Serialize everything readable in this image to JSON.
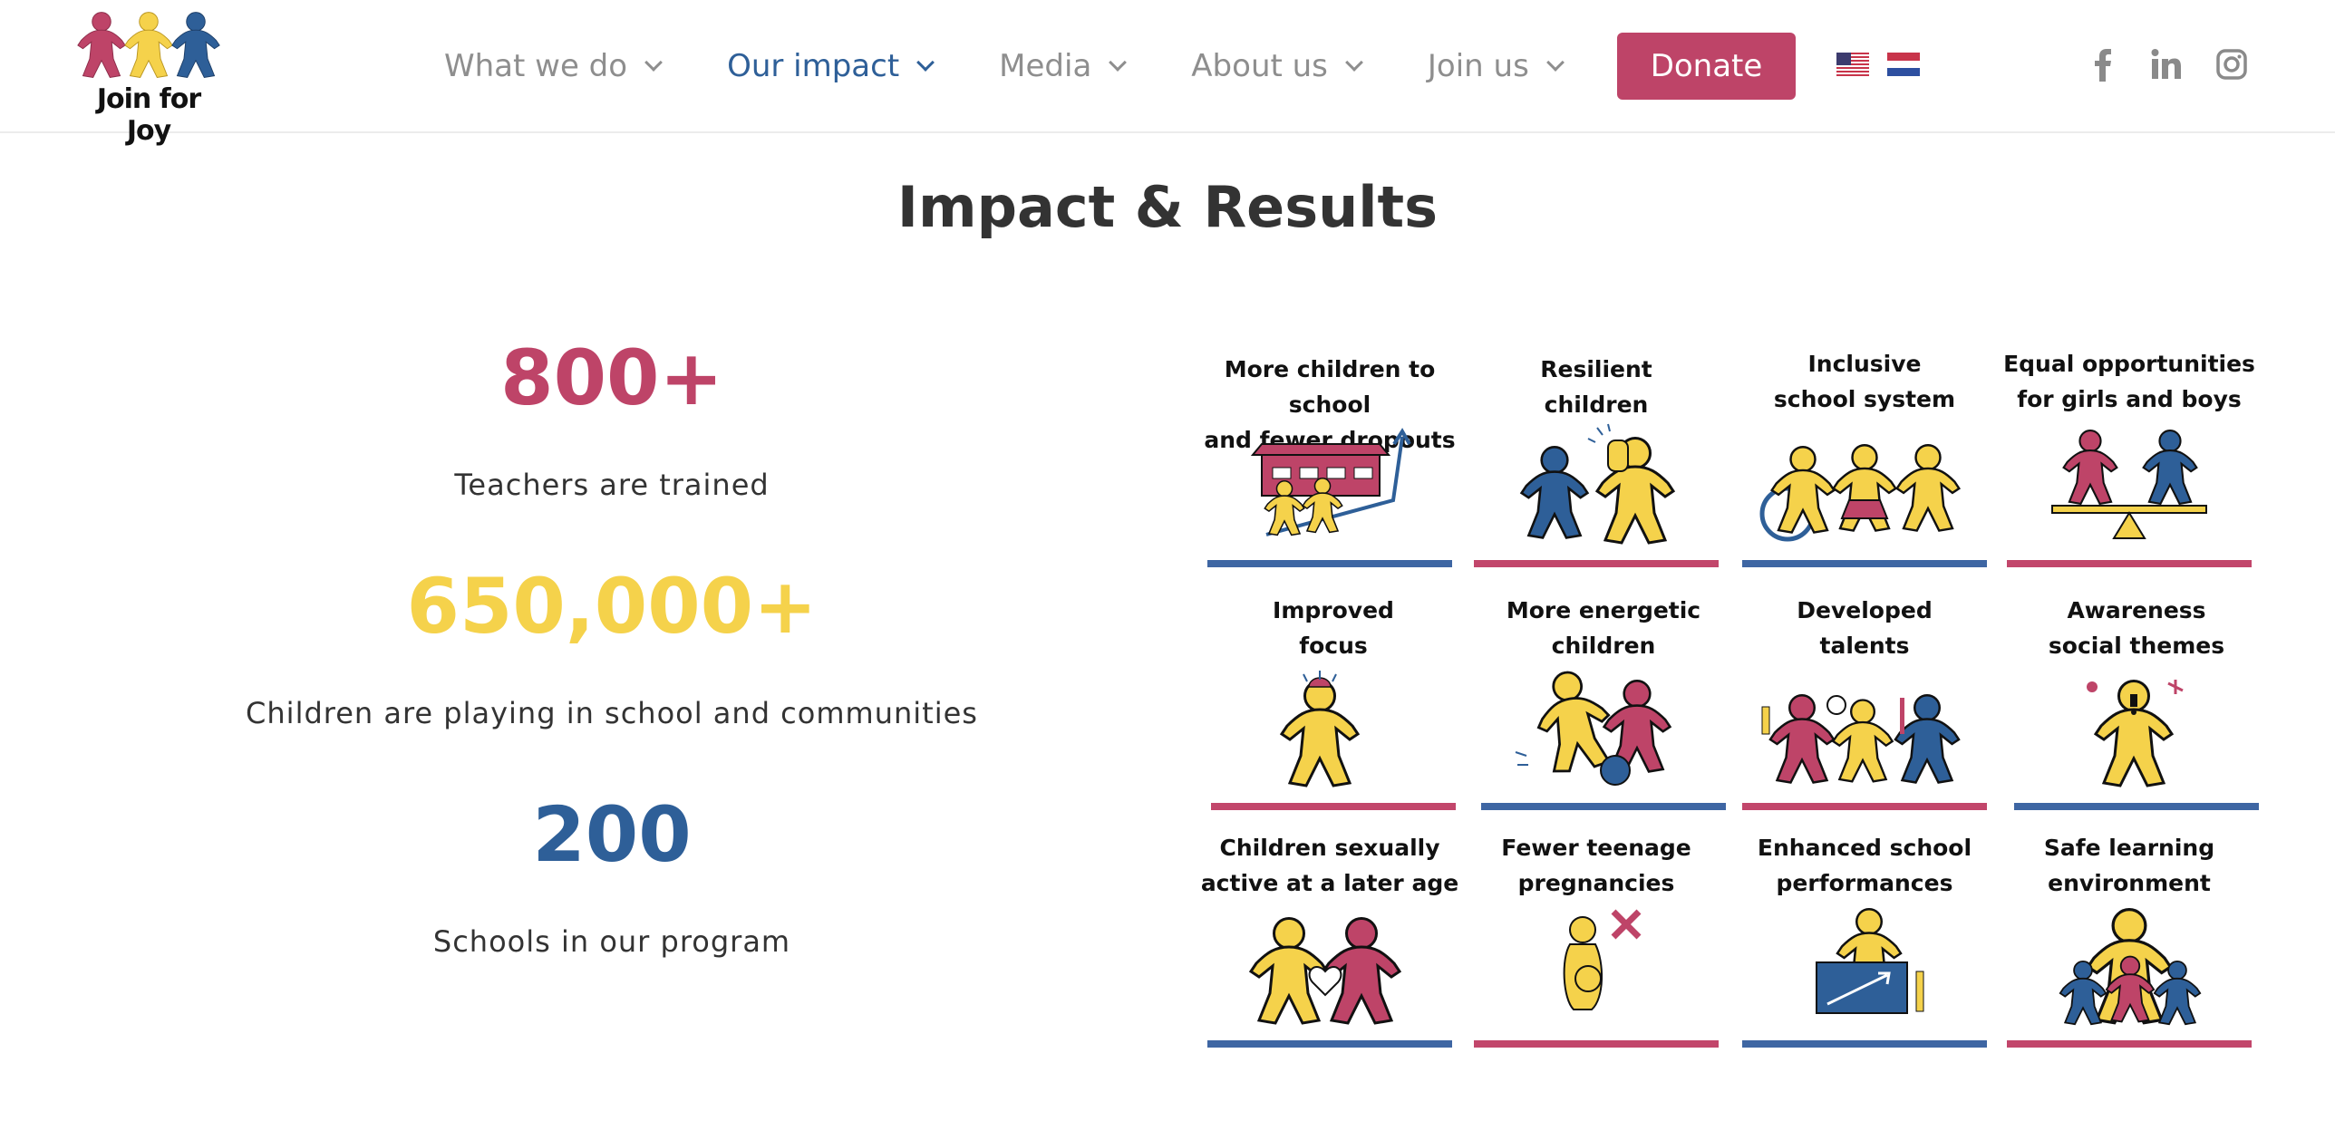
{
  "header": {
    "logo_text": "Join for Joy",
    "nav": [
      {
        "label": "What we do",
        "active": false
      },
      {
        "label": "Our impact",
        "active": true
      },
      {
        "label": "Media",
        "active": false
      },
      {
        "label": "About us",
        "active": false
      },
      {
        "label": "Join us",
        "active": false
      }
    ],
    "donate_label": "Donate",
    "flags": [
      "us-flag-icon",
      "nl-flag-icon"
    ],
    "social": [
      "facebook-icon",
      "linkedin-icon",
      "instagram-icon"
    ]
  },
  "page": {
    "title": "Impact & Results"
  },
  "colors": {
    "pink": "#be4468",
    "yellow": "#f5d24b",
    "blue": "#2e5f98",
    "blue_line": "#3e66a3",
    "pink_line": "#c2466b"
  },
  "stats": [
    {
      "value": "800+",
      "label": "Teachers are trained",
      "color": "#be4468"
    },
    {
      "value": "650,000+",
      "label": "Children are playing in school and communities",
      "color": "#f5d24b"
    },
    {
      "value": "200",
      "label": "Schools in our program",
      "color": "#2e5f98"
    }
  ],
  "impacts": [
    {
      "line1": "More children to school",
      "line2": "and fewer dropouts",
      "icon": "school-children-icon",
      "bar": "blue"
    },
    {
      "line1": "Resilient",
      "line2": "children",
      "icon": "resilient-children-icon",
      "bar": "pink"
    },
    {
      "line1": "Inclusive",
      "line2": "school system",
      "icon": "inclusive-children-icon",
      "bar": "blue"
    },
    {
      "line1": "Equal opportunities",
      "line2": "for girls and boys",
      "icon": "balance-scale-icon",
      "bar": "pink"
    },
    {
      "line1": "Improved",
      "line2": "focus",
      "icon": "focused-child-icon",
      "bar": "pink"
    },
    {
      "line1": "More energetic",
      "line2": "children",
      "icon": "energetic-children-icon",
      "bar": "blue"
    },
    {
      "line1": "Developed",
      "line2": "talents",
      "icon": "talents-children-icon",
      "bar": "pink"
    },
    {
      "line1": "Awareness",
      "line2": "social themes",
      "icon": "awareness-child-icon",
      "bar": "blue"
    },
    {
      "line1": "Children sexually",
      "line2": "active at a later age",
      "icon": "heart-children-icon",
      "bar": "blue"
    },
    {
      "line1": "Fewer teenage",
      "line2": "pregnancies",
      "icon": "pregnancy-cross-icon",
      "bar": "pink"
    },
    {
      "line1": "Enhanced school",
      "line2": "performances",
      "icon": "performance-chart-icon",
      "bar": "blue"
    },
    {
      "line1": "Safe learning",
      "line2": "environment",
      "icon": "protecting-adult-icon",
      "bar": "pink"
    }
  ]
}
